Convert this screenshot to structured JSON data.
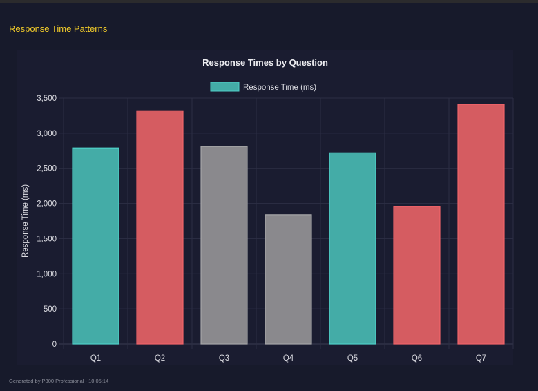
{
  "section_title": "Response Time Patterns",
  "footer": "Generated by P300 Professional - 10:05:14",
  "chart_data": {
    "type": "bar",
    "title": "Response Times by Question",
    "xlabel": "",
    "ylabel": "Response Time (ms)",
    "ylim": [
      0,
      3500
    ],
    "yticks": [
      0,
      500,
      1000,
      1500,
      2000,
      2500,
      3000,
      3500
    ],
    "ytick_labels": [
      "0",
      "500",
      "1,000",
      "1,500",
      "2,000",
      "2,500",
      "3,000",
      "3,500"
    ],
    "categories": [
      "Q1",
      "Q2",
      "Q3",
      "Q4",
      "Q5",
      "Q6",
      "Q7"
    ],
    "series": [
      {
        "name": "Response Time (ms)",
        "values": [
          2790,
          3320,
          2810,
          1840,
          2720,
          1960,
          3410
        ]
      }
    ],
    "bar_colors": [
      "#44aca7",
      "#d55c61",
      "#8a898d",
      "#8a898d",
      "#44aca7",
      "#d55c61",
      "#d55c61"
    ],
    "bar_border_colors": [
      "#4fd1c9",
      "#f2646a",
      "#a6a6a8",
      "#a6a6a8",
      "#4fd1c9",
      "#f2646a",
      "#f2646a"
    ],
    "legend_color": "#44aca7",
    "legend_position": "top",
    "grid": true
  }
}
